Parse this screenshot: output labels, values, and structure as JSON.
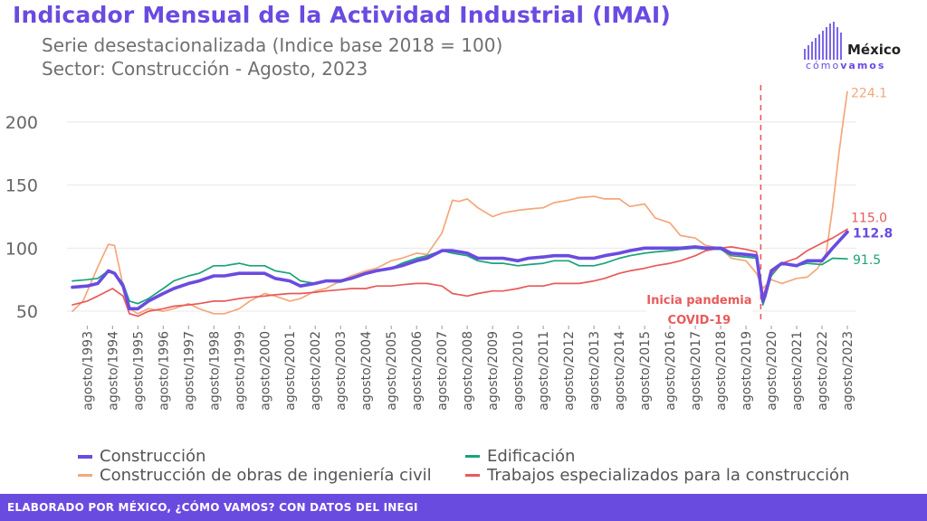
{
  "header": {
    "title": "Indicador Mensual de la Actividad Industrial (IMAI)",
    "subtitle1": "Serie desestacionalizada (Indice base 2018 = 100)",
    "subtitle2": "Sector: Construcción - Agosto, 2023"
  },
  "logo": {
    "name": "México",
    "tagline_light": "cómo",
    "tagline_bold": "vamos"
  },
  "footer": {
    "text": "ELABORADO POR MÉXICO, ¿CÓMO VAMOS? CON DATOS DEL INEGI"
  },
  "colors": {
    "construccion": "#6a4be0",
    "edificacion": "#1aa37a",
    "ingenieria": "#f4a77a",
    "especializados": "#e85a5a",
    "annotation": "#e85a5a"
  },
  "chart_data": {
    "type": "line",
    "x_start": "1993-01",
    "x_end": "2023-08",
    "yticks": [
      50,
      100,
      150,
      200
    ],
    "ylim": [
      40,
      225
    ],
    "grid": true,
    "legend_position": "bottom",
    "categories": [
      "agosto/1993",
      "agosto/1994",
      "agosto/1995",
      "agosto/1996",
      "agosto/1997",
      "agosto/1998",
      "agosto/1999",
      "agosto/2000",
      "agosto/2001",
      "agosto/2002",
      "agosto/2003",
      "agosto/2004",
      "agosto/2005",
      "agosto/2006",
      "agosto/2007",
      "agosto/2008",
      "agosto/2009",
      "agosto/2010",
      "agosto/2011",
      "agosto/2012",
      "agosto/2013",
      "agosto/2014",
      "agosto/2015",
      "agosto/2016",
      "agosto/2017",
      "agosto/2018",
      "agosto/2019",
      "agosto/2020",
      "agosto/2021",
      "agosto/2022",
      "agosto/2023"
    ],
    "annotation": {
      "date": "2020-03",
      "line1": "Inicia pandemia",
      "line2": "COVID-19"
    },
    "series": [
      {
        "key": "ingenieria",
        "name": "Construcción de obras de ingeniería civil",
        "x": [
          "1993-01",
          "1993-06",
          "1994-01",
          "1994-06",
          "1994-09",
          "1995-01",
          "1995-04",
          "1995-08",
          "1996-01",
          "1996-08",
          "1997-01",
          "1997-08",
          "1998-01",
          "1998-08",
          "1999-01",
          "1999-08",
          "2000-01",
          "2000-08",
          "2001-01",
          "2001-08",
          "2002-01",
          "2002-08",
          "2003-01",
          "2003-08",
          "2004-01",
          "2004-08",
          "2005-01",
          "2005-08",
          "2006-01",
          "2006-08",
          "2007-01",
          "2007-08",
          "2008-01",
          "2008-04",
          "2008-08",
          "2009-01",
          "2009-08",
          "2010-01",
          "2010-08",
          "2011-01",
          "2011-08",
          "2012-01",
          "2012-08",
          "2013-01",
          "2013-08",
          "2014-01",
          "2014-08",
          "2015-01",
          "2015-08",
          "2016-01",
          "2016-08",
          "2017-01",
          "2017-08",
          "2018-01",
          "2018-08",
          "2019-01",
          "2019-08",
          "2020-01",
          "2020-04",
          "2020-08",
          "2021-01",
          "2021-08",
          "2022-01",
          "2022-06",
          "2022-10",
          "2023-01",
          "2023-04",
          "2023-06",
          "2023-08"
        ],
        "values": [
          50,
          58,
          85,
          103,
          102,
          70,
          52,
          48,
          52,
          50,
          52,
          56,
          52,
          48,
          48,
          52,
          58,
          64,
          62,
          58,
          60,
          66,
          68,
          74,
          78,
          82,
          84,
          90,
          92,
          96,
          95,
          112,
          138,
          137,
          139,
          132,
          125,
          128,
          130,
          131,
          132,
          136,
          138,
          140,
          141,
          139,
          139,
          133,
          135,
          124,
          120,
          110,
          108,
          102,
          100,
          92,
          90,
          80,
          68,
          75,
          72,
          76,
          77,
          84,
          96,
          132,
          175,
          200,
          224.1
        ]
      },
      {
        "key": "edificacion",
        "name": "Edificación",
        "x": [
          "1993-01",
          "1993-08",
          "1994-01",
          "1994-06",
          "1994-09",
          "1995-01",
          "1995-04",
          "1995-08",
          "1996-01",
          "1996-08",
          "1997-01",
          "1997-08",
          "1998-01",
          "1998-08",
          "1999-01",
          "1999-08",
          "2000-01",
          "2000-08",
          "2001-01",
          "2001-08",
          "2002-01",
          "2002-08",
          "2003-01",
          "2003-08",
          "2004-01",
          "2004-08",
          "2005-01",
          "2005-08",
          "2006-01",
          "2006-08",
          "2007-01",
          "2007-08",
          "2008-01",
          "2008-08",
          "2009-01",
          "2009-08",
          "2010-01",
          "2010-08",
          "2011-01",
          "2011-08",
          "2012-01",
          "2012-08",
          "2013-01",
          "2013-08",
          "2014-01",
          "2014-08",
          "2015-01",
          "2015-08",
          "2016-01",
          "2016-08",
          "2017-01",
          "2017-08",
          "2018-01",
          "2018-08",
          "2019-01",
          "2019-08",
          "2020-01",
          "2020-04",
          "2020-05",
          "2020-08",
          "2021-01",
          "2021-08",
          "2022-01",
          "2022-08",
          "2023-01",
          "2023-08"
        ],
        "values": [
          74,
          75,
          76,
          82,
          80,
          72,
          58,
          56,
          60,
          68,
          74,
          78,
          80,
          86,
          86,
          88,
          86,
          86,
          82,
          80,
          74,
          72,
          74,
          73,
          76,
          80,
          82,
          84,
          88,
          92,
          94,
          98,
          96,
          94,
          90,
          88,
          88,
          86,
          87,
          88,
          90,
          90,
          86,
          86,
          88,
          92,
          94,
          96,
          97,
          98,
          99,
          100,
          99,
          99,
          94,
          93,
          92,
          55,
          60,
          78,
          88,
          86,
          88,
          87,
          92,
          91.5
        ]
      },
      {
        "key": "especializados",
        "name": "Trabajos especializados para la construcción",
        "x": [
          "1993-01",
          "1993-08",
          "1994-01",
          "1994-08",
          "1995-01",
          "1995-04",
          "1995-08",
          "1996-01",
          "1996-08",
          "1997-01",
          "1997-08",
          "1998-01",
          "1998-08",
          "1999-01",
          "1999-08",
          "2000-01",
          "2000-08",
          "2001-01",
          "2001-08",
          "2002-01",
          "2002-08",
          "2003-01",
          "2003-08",
          "2004-01",
          "2004-08",
          "2005-01",
          "2005-08",
          "2006-01",
          "2006-08",
          "2007-01",
          "2007-08",
          "2008-01",
          "2008-08",
          "2009-01",
          "2009-08",
          "2010-01",
          "2010-08",
          "2011-01",
          "2011-08",
          "2012-01",
          "2012-08",
          "2013-01",
          "2013-08",
          "2014-01",
          "2014-08",
          "2015-01",
          "2015-08",
          "2016-01",
          "2016-08",
          "2017-01",
          "2017-08",
          "2018-01",
          "2018-08",
          "2019-01",
          "2019-08",
          "2020-01",
          "2020-04",
          "2020-08",
          "2021-01",
          "2021-08",
          "2022-01",
          "2022-08",
          "2023-01",
          "2023-08"
        ],
        "values": [
          55,
          58,
          62,
          68,
          62,
          48,
          46,
          50,
          52,
          54,
          55,
          56,
          58,
          58,
          60,
          61,
          62,
          63,
          64,
          64,
          65,
          66,
          67,
          68,
          68,
          70,
          70,
          71,
          72,
          72,
          70,
          64,
          62,
          64,
          66,
          66,
          68,
          70,
          70,
          72,
          72,
          72,
          74,
          76,
          80,
          82,
          84,
          86,
          88,
          90,
          94,
          98,
          100,
          101,
          99,
          97,
          62,
          80,
          88,
          92,
          98,
          104,
          108,
          115.0
        ]
      },
      {
        "key": "construccion",
        "name": "Construcción",
        "x": [
          "1993-01",
          "1993-08",
          "1994-01",
          "1994-06",
          "1994-09",
          "1995-01",
          "1995-04",
          "1995-08",
          "1996-01",
          "1996-08",
          "1997-01",
          "1997-08",
          "1998-01",
          "1998-08",
          "1999-01",
          "1999-08",
          "2000-01",
          "2000-08",
          "2001-01",
          "2001-08",
          "2002-01",
          "2002-08",
          "2003-01",
          "2003-08",
          "2004-01",
          "2004-08",
          "2005-01",
          "2005-08",
          "2006-01",
          "2006-08",
          "2007-01",
          "2007-08",
          "2008-01",
          "2008-08",
          "2009-01",
          "2009-08",
          "2010-01",
          "2010-08",
          "2011-01",
          "2011-08",
          "2012-01",
          "2012-08",
          "2013-01",
          "2013-08",
          "2014-01",
          "2014-08",
          "2015-01",
          "2015-08",
          "2016-01",
          "2016-08",
          "2017-01",
          "2017-08",
          "2018-01",
          "2018-08",
          "2019-01",
          "2019-08",
          "2020-01",
          "2020-04",
          "2020-05",
          "2020-08",
          "2021-01",
          "2021-08",
          "2022-01",
          "2022-08",
          "2023-01",
          "2023-08"
        ],
        "values": [
          69,
          70,
          72,
          82,
          80,
          70,
          52,
          52,
          58,
          64,
          68,
          72,
          74,
          78,
          78,
          80,
          80,
          80,
          76,
          74,
          70,
          72,
          74,
          74,
          76,
          80,
          82,
          84,
          86,
          90,
          92,
          98,
          98,
          96,
          92,
          92,
          92,
          90,
          92,
          93,
          94,
          94,
          92,
          92,
          94,
          96,
          98,
          100,
          100,
          100,
          100,
          101,
          100,
          100,
          96,
          95,
          94,
          58,
          62,
          82,
          88,
          86,
          90,
          90,
          100,
          112.8
        ]
      }
    ],
    "end_labels": [
      "224.1",
      "115.0",
      "112.8",
      "91.5"
    ]
  },
  "legend": {
    "construccion": "Construcción",
    "edificacion": "Edificación",
    "ingenieria": "Construcción de obras de ingeniería civil",
    "especializados": "Trabajos especializados para la construcción"
  }
}
